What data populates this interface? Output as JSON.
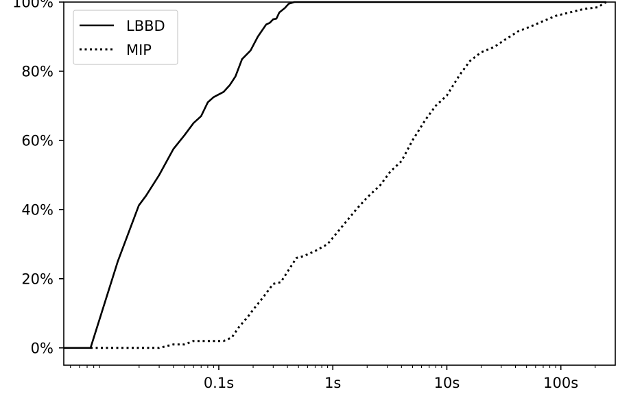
{
  "chart_data": {
    "type": "line",
    "xscale": "log",
    "xlim": [
      0.00437,
      300
    ],
    "ylim": [
      -5,
      100
    ],
    "x_ticks": [
      {
        "value": 0.1,
        "label": "0.1s"
      },
      {
        "value": 1,
        "label": "1s"
      },
      {
        "value": 10,
        "label": "10s"
      },
      {
        "value": 100,
        "label": "100s"
      }
    ],
    "y_ticks": [
      {
        "value": 0,
        "label": "0%"
      },
      {
        "value": 20,
        "label": "20%"
      },
      {
        "value": 40,
        "label": "40%"
      },
      {
        "value": 60,
        "label": "60%"
      },
      {
        "value": 80,
        "label": "80%"
      },
      {
        "value": 100,
        "label": "100%"
      }
    ],
    "grid": false,
    "legend_position": "top-left",
    "series": [
      {
        "name": "LBBD",
        "line_style": "solid",
        "color": "#000000",
        "points": [
          [
            0.0044,
            0
          ],
          [
            0.0075,
            0
          ],
          [
            0.013,
            25
          ],
          [
            0.0199,
            41.2
          ],
          [
            0.023,
            44
          ],
          [
            0.03,
            50
          ],
          [
            0.04,
            57.5
          ],
          [
            0.05,
            61.5
          ],
          [
            0.06,
            65
          ],
          [
            0.07,
            67
          ],
          [
            0.08,
            71
          ],
          [
            0.09,
            72.5
          ],
          [
            0.11,
            74
          ],
          [
            0.125,
            76
          ],
          [
            0.14,
            78.5
          ],
          [
            0.16,
            83.5
          ],
          [
            0.19,
            86
          ],
          [
            0.22,
            90
          ],
          [
            0.26,
            93.5
          ],
          [
            0.28,
            94
          ],
          [
            0.3,
            95
          ],
          [
            0.32,
            95.2
          ],
          [
            0.34,
            97
          ],
          [
            0.38,
            98.3
          ],
          [
            0.41,
            99.5
          ],
          [
            0.46,
            100
          ],
          [
            250,
            100
          ]
        ]
      },
      {
        "name": "MIP",
        "line_style": "dotted",
        "color": "#000000",
        "points": [
          [
            0.0075,
            0
          ],
          [
            0.02,
            0
          ],
          [
            0.03,
            0
          ],
          [
            0.04,
            1
          ],
          [
            0.05,
            1
          ],
          [
            0.06,
            2
          ],
          [
            0.07,
            2
          ],
          [
            0.09,
            2
          ],
          [
            0.11,
            2
          ],
          [
            0.13,
            3
          ],
          [
            0.15,
            6
          ],
          [
            0.18,
            9
          ],
          [
            0.2,
            11
          ],
          [
            0.25,
            15
          ],
          [
            0.3,
            18.5
          ],
          [
            0.35,
            19
          ],
          [
            0.4,
            22
          ],
          [
            0.48,
            26
          ],
          [
            0.55,
            26.5
          ],
          [
            0.7,
            28
          ],
          [
            0.9,
            30
          ],
          [
            1.2,
            35
          ],
          [
            1.6,
            40
          ],
          [
            2,
            43.5
          ],
          [
            2.6,
            47
          ],
          [
            3.2,
            51
          ],
          [
            4,
            54
          ],
          [
            5,
            60
          ],
          [
            6.5,
            66
          ],
          [
            8,
            70
          ],
          [
            10,
            73
          ],
          [
            13,
            79
          ],
          [
            16,
            83
          ],
          [
            20,
            85.5
          ],
          [
            26,
            87
          ],
          [
            32,
            89
          ],
          [
            42,
            91.5
          ],
          [
            55,
            93
          ],
          [
            70,
            94.5
          ],
          [
            90,
            96
          ],
          [
            120,
            97
          ],
          [
            160,
            98
          ],
          [
            210,
            98.5
          ],
          [
            250,
            100
          ]
        ]
      }
    ]
  }
}
